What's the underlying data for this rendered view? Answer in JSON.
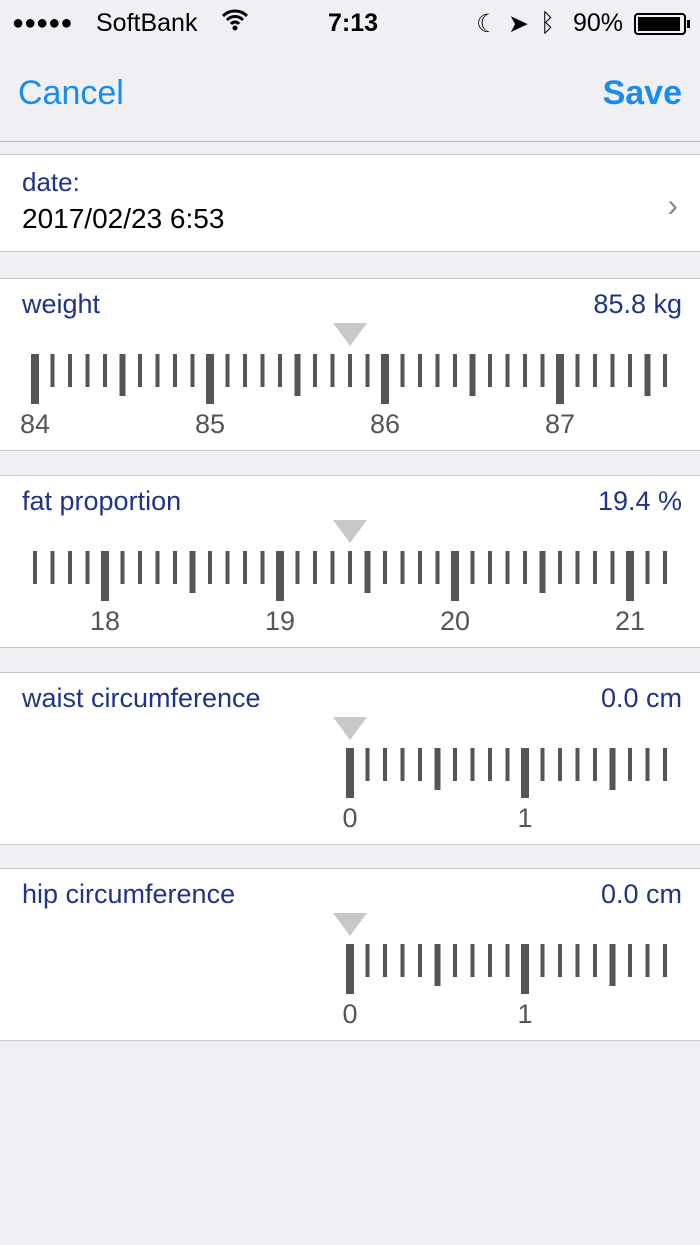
{
  "status_bar": {
    "signal": "●●●●●",
    "carrier": "SoftBank",
    "time": "7:13",
    "battery": "90%",
    "icons": [
      "wifi-icon",
      "moon-icon",
      "location-icon",
      "bluetooth-icon",
      "battery-icon"
    ]
  },
  "nav": {
    "cancel": "Cancel",
    "save": "Save"
  },
  "date": {
    "label": "date:",
    "value": "2017/02/23 6:53"
  },
  "measurements": [
    {
      "title": "weight",
      "display": "85.8 kg",
      "value": 85.8,
      "min": null
    },
    {
      "title": "fat proportion",
      "display": "19.4 %",
      "value": 19.4,
      "min": null
    },
    {
      "title": "waist circumference",
      "display": "0.0 cm",
      "value": 0.0,
      "min": 0
    },
    {
      "title": "hip circumference",
      "display": "0.0 cm",
      "value": 0.0,
      "min": 0
    }
  ],
  "colors": {
    "accent": "#1a8cf0",
    "label": "#1f3487",
    "tick": "#555555",
    "pointer": "#c8c8c8"
  }
}
